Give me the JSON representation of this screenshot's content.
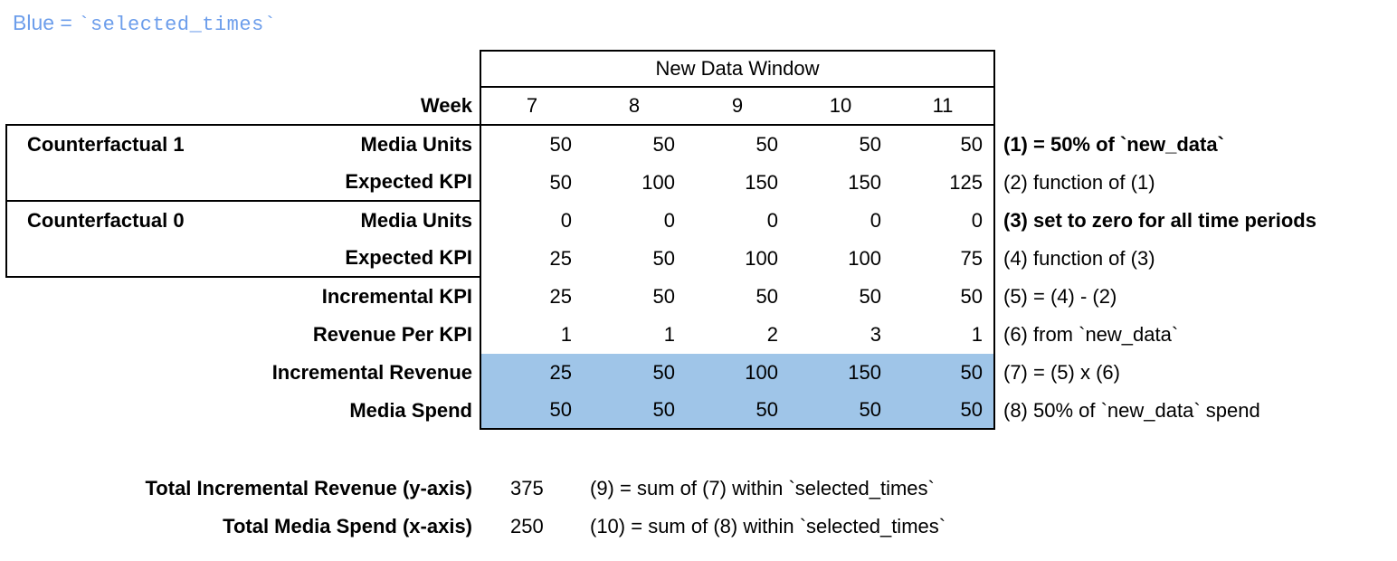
{
  "legend": {
    "prefix": "Blue = ",
    "code": "`selected_times`"
  },
  "colors": {
    "highlight_blue": "#9FC5E8",
    "legend_blue": "#6D9EEB",
    "border": "#000000"
  },
  "chart_data": {
    "type": "table",
    "window_header": "New Data Window",
    "week_label": "Week",
    "weeks": [
      "7",
      "8",
      "9",
      "10",
      "11"
    ],
    "rows": [
      {
        "group": "Counterfactual 1",
        "label": "Media Units",
        "values": [
          "50",
          "50",
          "50",
          "50",
          "50"
        ],
        "note": "(1) = 50% of `new_data`",
        "note_bold": true,
        "highlight": false
      },
      {
        "group": "",
        "label": "Expected KPI",
        "values": [
          "50",
          "100",
          "150",
          "150",
          "125"
        ],
        "note": "(2) function of (1)",
        "note_bold": false,
        "highlight": false
      },
      {
        "group": "Counterfactual 0",
        "label": "Media Units",
        "values": [
          "0",
          "0",
          "0",
          "0",
          "0"
        ],
        "note": "(3) set to zero for all time periods",
        "note_bold": true,
        "highlight": false
      },
      {
        "group": "",
        "label": "Expected KPI",
        "values": [
          "25",
          "50",
          "100",
          "100",
          "75"
        ],
        "note": "(4) function of (3)",
        "note_bold": false,
        "highlight": false
      },
      {
        "group": "",
        "label": "Incremental KPI",
        "values": [
          "25",
          "50",
          "50",
          "50",
          "50"
        ],
        "note": "(5) = (4) - (2)",
        "note_bold": false,
        "highlight": false
      },
      {
        "group": "",
        "label": "Revenue Per KPI",
        "values": [
          "1",
          "1",
          "2",
          "3",
          "1"
        ],
        "note": "(6) from `new_data`",
        "note_bold": false,
        "highlight": false
      },
      {
        "group": "",
        "label": "Incremental Revenue",
        "values": [
          "25",
          "50",
          "100",
          "150",
          "50"
        ],
        "note": "(7) = (5) x (6)",
        "note_bold": false,
        "highlight": true
      },
      {
        "group": "",
        "label": "Media Spend",
        "values": [
          "50",
          "50",
          "50",
          "50",
          "50"
        ],
        "note": "(8) 50% of `new_data` spend",
        "note_bold": false,
        "highlight": true
      }
    ],
    "totals": [
      {
        "label": "Total Incremental Revenue (y-axis)",
        "value": "375",
        "note": "(9) = sum of (7) within `selected_times`"
      },
      {
        "label": "Total Media Spend (x-axis)",
        "value": "250",
        "note": "(10) = sum of (8) within `selected_times`"
      }
    ]
  }
}
